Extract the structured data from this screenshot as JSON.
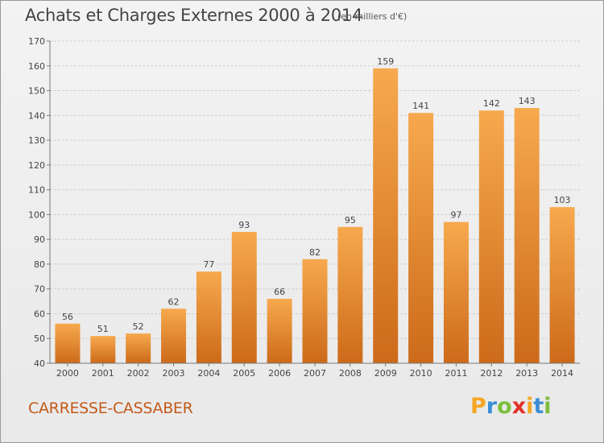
{
  "title": "Achats et Charges Externes 2000 à 2014",
  "subtitle": "(en milliers d'€)",
  "commune": "CARRESSE-CASSABER",
  "logo": {
    "letters": [
      "P",
      "r",
      "o",
      "x",
      "i",
      "t",
      "i"
    ],
    "colors": [
      "#f5a623",
      "#3b8fd6",
      "#7bbf3a",
      "#e0312a",
      "#f5a623",
      "#3b8fd6",
      "#7bbf3a"
    ]
  },
  "colors": {
    "bar_top": "#f7a94e",
    "bar_bottom": "#cc6a1a",
    "grid": "#cfcfcf",
    "text": "#444444"
  },
  "chart_data": {
    "type": "bar",
    "title": "Achats et Charges Externes 2000 à 2014",
    "subtitle": "(en milliers d'€)",
    "categories": [
      "2000",
      "2001",
      "2002",
      "2003",
      "2004",
      "2005",
      "2006",
      "2007",
      "2008",
      "2009",
      "2010",
      "2011",
      "2012",
      "2013",
      "2014"
    ],
    "values": [
      56,
      51,
      52,
      62,
      77,
      93,
      66,
      82,
      95,
      159,
      141,
      97,
      142,
      143,
      103
    ],
    "ylim": [
      40,
      170
    ],
    "yticks": [
      40,
      50,
      60,
      70,
      80,
      90,
      100,
      110,
      120,
      130,
      140,
      150,
      160,
      170
    ],
    "grid": true,
    "xlabel": "",
    "ylabel": ""
  }
}
